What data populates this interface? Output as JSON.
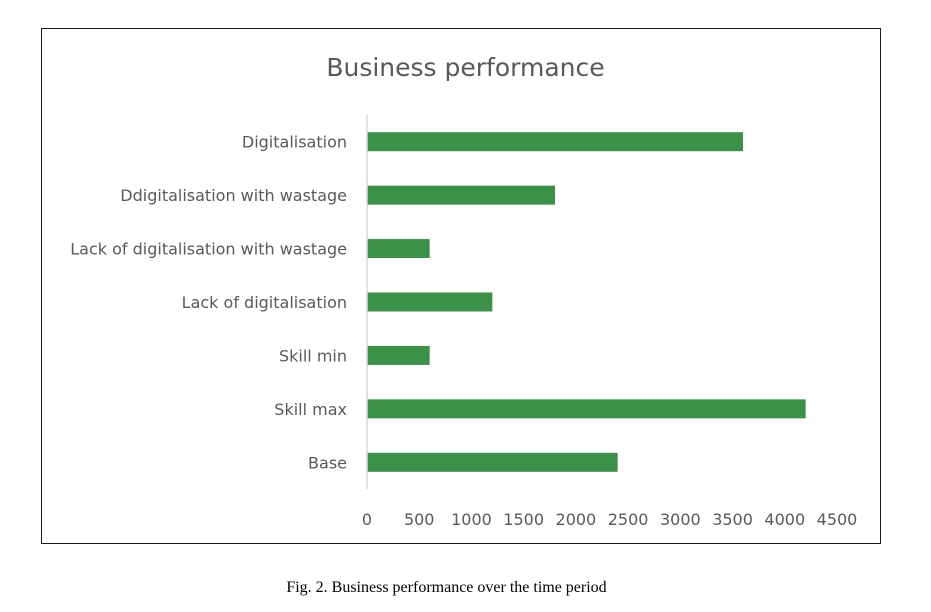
{
  "caption": "Fig. 2. Business performance over the time period",
  "chart_data": {
    "type": "bar",
    "orientation": "horizontal",
    "title": "Business performance",
    "xlabel": "",
    "ylabel": "",
    "categories": [
      "Digitalisation",
      "Ddigitalisation with wastage",
      "Lack of digitalisation with wastage",
      "Lack of digitalisation",
      "Skill min",
      "Skill max",
      "Base"
    ],
    "values": [
      3600,
      1800,
      600,
      1200,
      600,
      4200,
      2400
    ],
    "xlim": [
      0,
      4500
    ],
    "x_ticks": [
      "0",
      "500",
      "1000",
      "1500",
      "2000",
      "2500",
      "3000",
      "3500",
      "4000",
      "4500"
    ],
    "grid": false,
    "legend": "none",
    "bar_color": "#3a9147",
    "axis_color": "#d9d9d9",
    "text_color": "#595959"
  }
}
